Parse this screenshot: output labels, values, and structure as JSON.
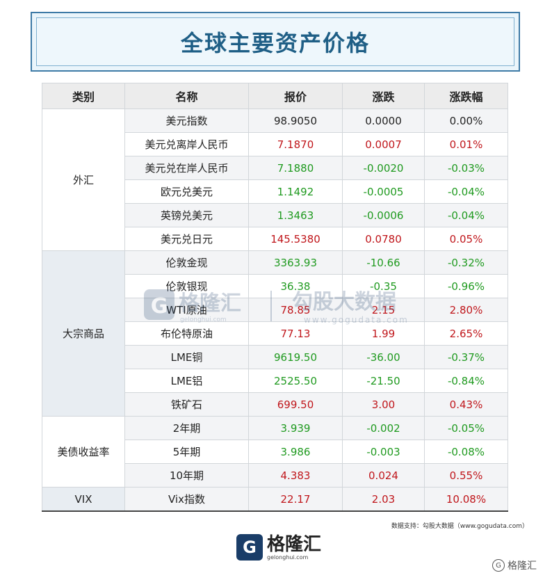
{
  "title": "全球主要资产价格",
  "headers": {
    "category": "类别",
    "name": "名称",
    "price": "报价",
    "change": "涨跌",
    "change_pct": "涨跌幅"
  },
  "groups": [
    {
      "category": "外汇",
      "rows": [
        {
          "name": "美元指数",
          "price": "98.9050",
          "change": "0.0000",
          "pct": "0.00%",
          "color": "black"
        },
        {
          "name": "美元兑离岸人民币",
          "price": "7.1870",
          "change": "0.0007",
          "pct": "0.01%",
          "color": "red"
        },
        {
          "name": "美元兑在岸人民币",
          "price": "7.1880",
          "change": "-0.0020",
          "pct": "-0.03%",
          "color": "green"
        },
        {
          "name": "欧元兑美元",
          "price": "1.1492",
          "change": "-0.0005",
          "pct": "-0.04%",
          "color": "green"
        },
        {
          "name": "英镑兑美元",
          "price": "1.3463",
          "change": "-0.0006",
          "pct": "-0.04%",
          "color": "green"
        },
        {
          "name": "美元兑日元",
          "price": "145.5380",
          "change": "0.0780",
          "pct": "0.05%",
          "color": "red"
        }
      ]
    },
    {
      "category": "大宗商品",
      "rows": [
        {
          "name": "伦敦金现",
          "price": "3363.93",
          "change": "-10.66",
          "pct": "-0.32%",
          "color": "green"
        },
        {
          "name": "伦敦银现",
          "price": "36.38",
          "change": "-0.35",
          "pct": "-0.96%",
          "color": "green"
        },
        {
          "name": "WTI原油",
          "price": "78.85",
          "change": "2.15",
          "pct": "2.80%",
          "color": "red"
        },
        {
          "name": "布伦特原油",
          "price": "77.13",
          "change": "1.99",
          "pct": "2.65%",
          "color": "red"
        },
        {
          "name": "LME铜",
          "price": "9619.50",
          "change": "-36.00",
          "pct": "-0.37%",
          "color": "green"
        },
        {
          "name": "LME铝",
          "price": "2525.50",
          "change": "-21.50",
          "pct": "-0.84%",
          "color": "green"
        },
        {
          "name": "铁矿石",
          "price": "699.50",
          "change": "3.00",
          "pct": "0.43%",
          "color": "red"
        }
      ]
    },
    {
      "category": "美债收益率",
      "rows": [
        {
          "name": "2年期",
          "price": "3.939",
          "change": "-0.002",
          "pct": "-0.05%",
          "color": "green"
        },
        {
          "name": "5年期",
          "price": "3.986",
          "change": "-0.003",
          "pct": "-0.08%",
          "color": "green"
        },
        {
          "name": "10年期",
          "price": "4.383",
          "change": "0.024",
          "pct": "0.55%",
          "color": "red"
        }
      ]
    },
    {
      "category": "VIX",
      "rows": [
        {
          "name": "Vix指数",
          "price": "22.17",
          "change": "2.03",
          "pct": "10.08%",
          "color": "red"
        }
      ]
    }
  ],
  "watermark": {
    "brand": "格隆汇",
    "brand_url": "gelonghui.com",
    "partner": "勾股大数据",
    "partner_url": "www.gogudata.com"
  },
  "source_note": "数据支持：勾股大数据（www.gogudata.com）",
  "logo": {
    "mark": "G",
    "name": "格隆汇",
    "url": "gelonghui.com"
  },
  "corner_mark": "格隆汇",
  "colors": {
    "red": "#c0161b",
    "green": "#1f9a1f",
    "black": "#222222",
    "title": "#1f5f86"
  }
}
